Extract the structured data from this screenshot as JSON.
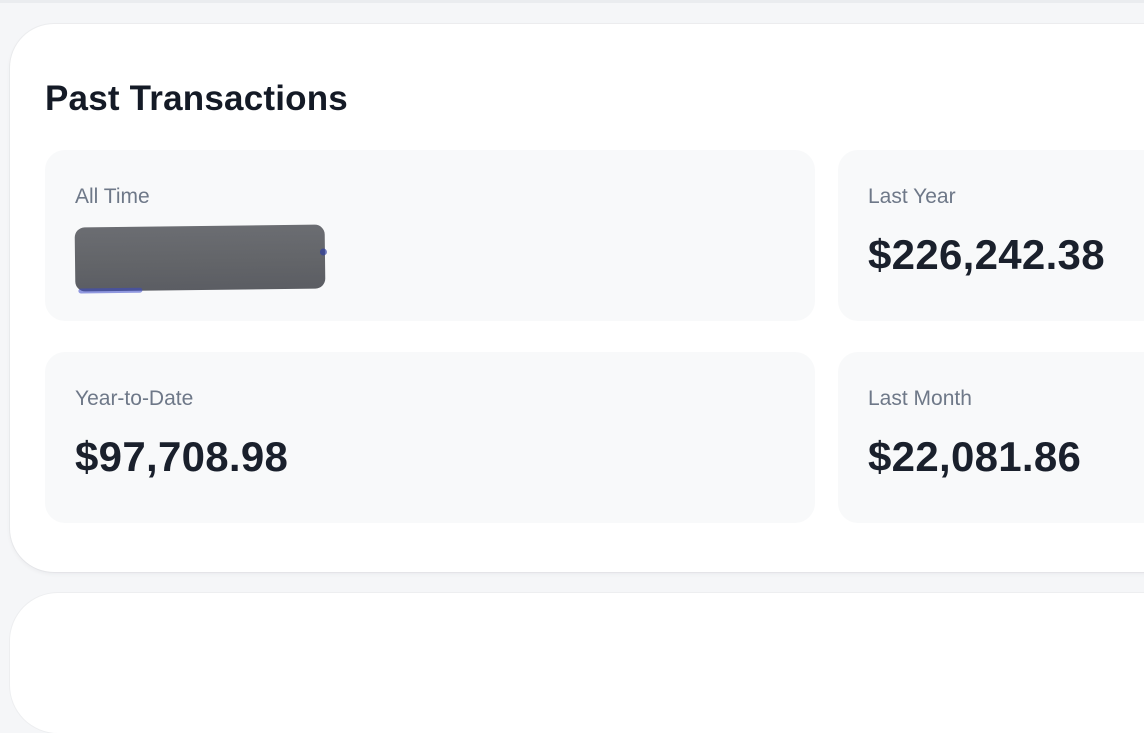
{
  "card": {
    "title": "Past Transactions"
  },
  "stats": [
    {
      "id": "all-time",
      "label": "All Time",
      "value": "",
      "redacted": true
    },
    {
      "id": "last-year",
      "label": "Last Year",
      "value": "$226,242.38",
      "redacted": false
    },
    {
      "id": "year-to-date",
      "label": "Year-to-Date",
      "value": "$97,708.98",
      "redacted": false
    },
    {
      "id": "last-month",
      "label": "Last Month",
      "value": "$22,081.86",
      "redacted": false
    }
  ],
  "colors": {
    "page_background": "#f5f6f8",
    "card_background": "#ffffff",
    "tile_background": "#f8f9fa",
    "title_text": "#141a26",
    "label_text": "#6e7888",
    "value_text": "#1a202c",
    "redaction_fill": "#636569",
    "redaction_accent": "#3a49c9"
  }
}
